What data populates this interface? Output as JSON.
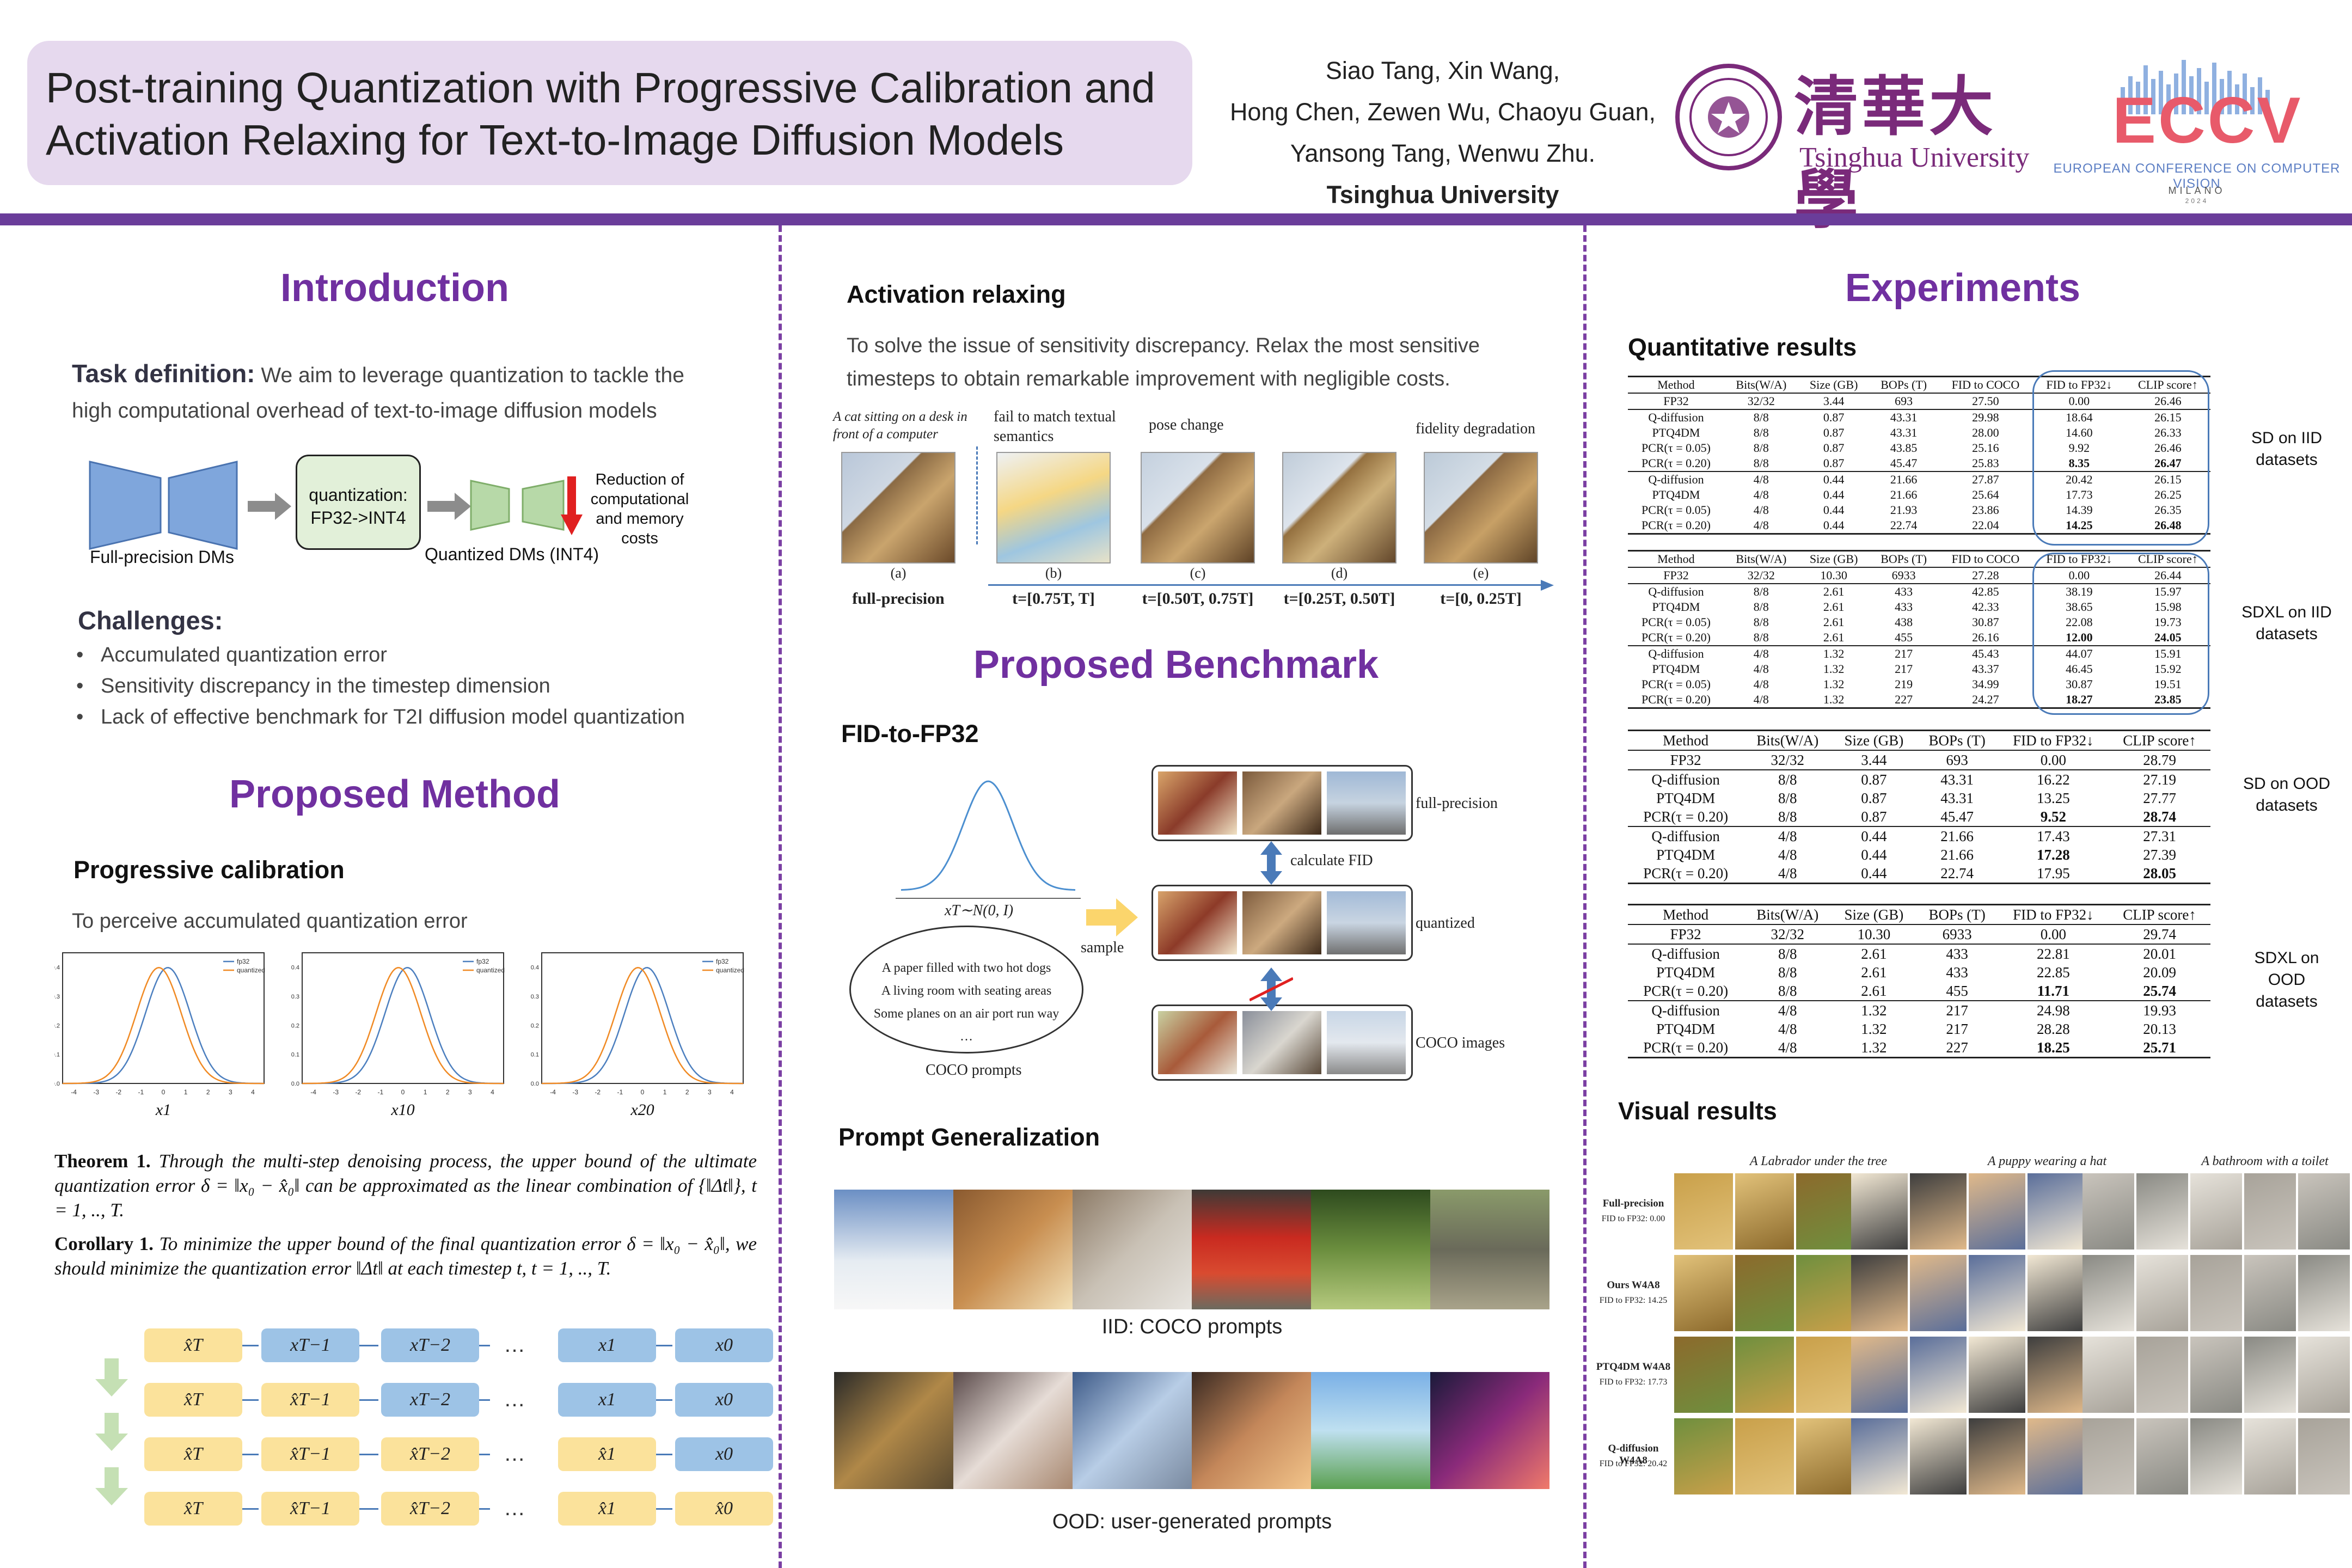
{
  "header": {
    "title_line1": "Post-training Quantization with Progressive Calibration and",
    "title_line2": "Activation Relaxing for Text-to-Image Diffusion Models",
    "authors_line1": "Siao Tang, Xin Wang,",
    "authors_line2": "Hong Chen, Zewen Wu, Chaoyu Guan,",
    "authors_line3": "Yansong Tang, Wenwu Zhu.",
    "affiliation": "Tsinghua University",
    "tsinghua_cn": "清華大學",
    "tsinghua_en": "Tsinghua University",
    "eccv": "ECCV",
    "eccv_sub": "EUROPEAN CONFERENCE ON COMPUTER VISION",
    "eccv_city": "MILANO",
    "eccv_year": "2024",
    "accent_color": "#6a3d9a"
  },
  "intro": {
    "heading": "Introduction",
    "task_label": "Task definition:",
    "task_text1": " We aim to leverage quantization to tackle the",
    "task_text2": "high computational overhead of  text-to-image diffusion models",
    "quant_box": "quantization: FP32->INT4",
    "reduction": "Reduction of computational and memory costs",
    "fp_label": "Full-precision DMs",
    "q_label": "Quantized DMs (INT4)",
    "challenges_heading": "Challenges:",
    "challenges": [
      "Accumulated quantization error",
      "Sensitivity discrepancy in the timestep dimension",
      "Lack of effective benchmark for T2I diffusion model quantization"
    ]
  },
  "method": {
    "heading": "Proposed Method",
    "prog_heading": "Progressive calibration",
    "prog_text": "To perceive accumulated quantization error",
    "plots": [
      {
        "xlabel": "x1"
      },
      {
        "xlabel": "x10"
      },
      {
        "xlabel": "x20"
      }
    ],
    "legend": [
      "fp32",
      "quantized"
    ],
    "theorem_label": "Theorem 1.",
    "theorem_text": "Through the multi-step denoising process, the upper bound of the ultimate quantization error δ = ‖x₀ − x̂₀‖ can be approximated as the linear combination of {‖Δt‖}, t = 1, .., T.",
    "corollary_label": "Corollary 1.",
    "corollary_text": "To minimize the upper bound of the final quantization error δ = ‖x₀ − x̂₀‖, we should minimize the quantization error ‖Δt‖ at each timestep t, t = 1, .., T.",
    "grid": [
      [
        "x̂T",
        "xT−1",
        "xT−2",
        "…",
        "x1",
        "x0"
      ],
      [
        "x̂T",
        "x̂T−1",
        "xT−2",
        "…",
        "x1",
        "x0"
      ],
      [
        "x̂T",
        "x̂T−1",
        "x̂T−2",
        "…",
        "x̂1",
        "x0"
      ],
      [
        "x̂T",
        "x̂T−1",
        "x̂T−2",
        "…",
        "x̂1",
        "x̂0"
      ]
    ]
  },
  "relax": {
    "heading": "Activation relaxing",
    "text1": "To solve the issue of sensitivity discrepancy. Relax the most sensitive",
    "text2": "timesteps to obtain remarkable improvement with negligible costs.",
    "prompt": "A cat sitting on a desk in front of a computer",
    "annotations": [
      "fail to match textual semantics",
      "pose change",
      "fidelity degradation"
    ],
    "letters": [
      "(a)",
      "(b)",
      "(c)",
      "(d)",
      "(e)"
    ],
    "labels": [
      "full-precision",
      "t=[0.75T, T]",
      "t=[0.50T, 0.75T]",
      "t=[0.25T, 0.50T]",
      "t=[0, 0.25T]"
    ]
  },
  "benchmark": {
    "heading": "Proposed Benchmark",
    "fid_heading": "FID-to-FP32",
    "dist_label": "xT∼N(0, I)",
    "sample": "sample",
    "prompts": [
      "A paper filled with two hot dogs",
      "A living room with seating areas",
      "Some planes on an air port run way",
      "…"
    ],
    "coco_prompts": "COCO prompts",
    "calc_fid": "calculate FID",
    "row_labels": [
      "full-precision",
      "quantized",
      "COCO images"
    ],
    "gen_heading": "Prompt Generalization",
    "iid_caption": "IID: COCO prompts",
    "ood_caption": "OOD: user-generated prompts"
  },
  "experiments": {
    "heading": "Experiments",
    "quant_heading": "Quantitative results",
    "visual_heading": "Visual results",
    "tables": [
      {
        "side": "SD on IID datasets",
        "header": [
          "Method",
          "Bits(W/A)",
          "Size (GB)",
          "BOPs (T)",
          "FID to COCO",
          "FID to FP32↓",
          "CLIP score↑"
        ],
        "rows": [
          [
            "FP32",
            "32/32",
            "3.44",
            "693",
            "27.50",
            "0.00",
            "26.46"
          ],
          [
            "Q-diffusion",
            "8/8",
            "0.87",
            "43.31",
            "29.98",
            "18.64",
            "26.15"
          ],
          [
            "PTQ4DM",
            "8/8",
            "0.87",
            "43.31",
            "28.00",
            "14.60",
            "26.33"
          ],
          [
            "PCR(τ = 0.05)",
            "8/8",
            "0.87",
            "43.85",
            "25.16",
            "9.92",
            "26.46"
          ],
          [
            "PCR(τ = 0.20)",
            "8/8",
            "0.87",
            "45.47",
            "25.83",
            "8.35",
            "26.47"
          ],
          [
            "Q-diffusion",
            "4/8",
            "0.44",
            "21.66",
            "27.87",
            "20.42",
            "26.15"
          ],
          [
            "PTQ4DM",
            "4/8",
            "0.44",
            "21.66",
            "25.64",
            "17.73",
            "26.25"
          ],
          [
            "PCR(τ = 0.05)",
            "4/8",
            "0.44",
            "21.93",
            "23.86",
            "14.39",
            "26.35"
          ],
          [
            "PCR(τ = 0.20)",
            "4/8",
            "0.44",
            "22.74",
            "22.04",
            "14.25",
            "26.48"
          ]
        ]
      },
      {
        "side": "SDXL on IID datasets",
        "header": [
          "Method",
          "Bits(W/A)",
          "Size (GB)",
          "BOPs (T)",
          "FID to COCO",
          "FID to FP32↓",
          "CLIP score↑"
        ],
        "rows": [
          [
            "FP32",
            "32/32",
            "10.30",
            "6933",
            "27.28",
            "0.00",
            "26.44"
          ],
          [
            "Q-diffusion",
            "8/8",
            "2.61",
            "433",
            "42.85",
            "38.19",
            "15.97"
          ],
          [
            "PTQ4DM",
            "8/8",
            "2.61",
            "433",
            "42.33",
            "38.65",
            "15.98"
          ],
          [
            "PCR(τ = 0.05)",
            "8/8",
            "2.61",
            "438",
            "30.87",
            "22.08",
            "19.73"
          ],
          [
            "PCR(τ = 0.20)",
            "8/8",
            "2.61",
            "455",
            "26.16",
            "12.00",
            "24.05"
          ],
          [
            "Q-diffusion",
            "4/8",
            "1.32",
            "217",
            "45.43",
            "44.07",
            "15.91"
          ],
          [
            "PTQ4DM",
            "4/8",
            "1.32",
            "217",
            "43.37",
            "46.45",
            "15.92"
          ],
          [
            "PCR(τ = 0.05)",
            "4/8",
            "1.32",
            "219",
            "34.99",
            "30.87",
            "19.51"
          ],
          [
            "PCR(τ = 0.20)",
            "4/8",
            "1.32",
            "227",
            "24.27",
            "18.27",
            "23.85"
          ]
        ]
      },
      {
        "side": "SD on OOD datasets",
        "header": [
          "Method",
          "Bits(W/A)",
          "Size (GB)",
          "BOPs (T)",
          "FID to FP32↓",
          "CLIP score↑"
        ],
        "rows": [
          [
            "FP32",
            "32/32",
            "3.44",
            "693",
            "0.00",
            "28.79"
          ],
          [
            "Q-diffusion",
            "8/8",
            "0.87",
            "43.31",
            "16.22",
            "27.19"
          ],
          [
            "PTQ4DM",
            "8/8",
            "0.87",
            "43.31",
            "13.25",
            "27.77"
          ],
          [
            "PCR(τ = 0.20)",
            "8/8",
            "0.87",
            "45.47",
            "9.52",
            "28.74"
          ],
          [
            "Q-diffusion",
            "4/8",
            "0.44",
            "21.66",
            "17.43",
            "27.31"
          ],
          [
            "PTQ4DM",
            "4/8",
            "0.44",
            "21.66",
            "17.28",
            "27.39"
          ],
          [
            "PCR(τ = 0.20)",
            "4/8",
            "0.44",
            "22.74",
            "17.95",
            "28.05"
          ]
        ]
      },
      {
        "side": "SDXL on OOD datasets",
        "header": [
          "Method",
          "Bits(W/A)",
          "Size (GB)",
          "BOPs (T)",
          "FID to FP32↓",
          "CLIP score↑"
        ],
        "rows": [
          [
            "FP32",
            "32/32",
            "10.30",
            "6933",
            "0.00",
            "29.74"
          ],
          [
            "Q-diffusion",
            "8/8",
            "2.61",
            "433",
            "22.81",
            "20.01"
          ],
          [
            "PTQ4DM",
            "8/8",
            "2.61",
            "433",
            "22.85",
            "20.09"
          ],
          [
            "PCR(τ = 0.20)",
            "8/8",
            "2.61",
            "455",
            "11.71",
            "25.74"
          ],
          [
            "Q-diffusion",
            "4/8",
            "1.32",
            "217",
            "24.98",
            "19.93"
          ],
          [
            "PTQ4DM",
            "4/8",
            "1.32",
            "217",
            "28.28",
            "20.13"
          ],
          [
            "PCR(τ = 0.20)",
            "4/8",
            "1.32",
            "227",
            "18.25",
            "25.71"
          ]
        ]
      }
    ],
    "visual_prompts": [
      "A Labrador under the tree",
      "A puppy wearing a hat",
      "A bathroom with a toilet"
    ],
    "visual_rows": [
      [
        "Full-precision",
        "FID to FP32: 0.00"
      ],
      [
        "Ours W4A8",
        "FID to FP32: 14.25"
      ],
      [
        "PTQ4DM W4A8",
        "FID to FP32: 17.73"
      ],
      [
        "Q-diffusion W4A8",
        "FID to FP32: 20.42"
      ]
    ]
  }
}
